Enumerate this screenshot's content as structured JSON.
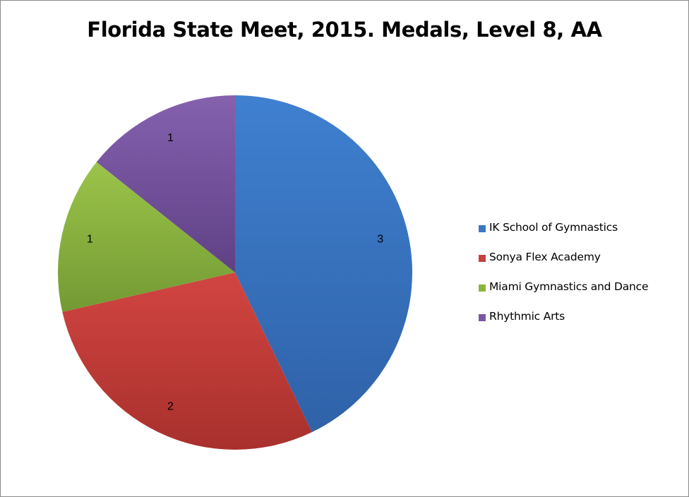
{
  "chart_data": {
    "type": "pie",
    "title": "Florida State Meet, 2015. Medals, Level 8, AA",
    "categories": [
      "IK School of Gymnastics",
      "Sonya Flex Academy",
      "Miami Gymnastics and Dance",
      "Rhythmic Arts"
    ],
    "values": [
      3,
      2,
      1,
      1
    ],
    "data_labels": [
      "3",
      "2",
      "1",
      "1"
    ],
    "colors": [
      "#3a78c4",
      "#c9403b",
      "#8db43e",
      "#7a57a3"
    ],
    "legend_placement": "right",
    "start_angle": "12 o'clock",
    "direction": "clockwise"
  }
}
